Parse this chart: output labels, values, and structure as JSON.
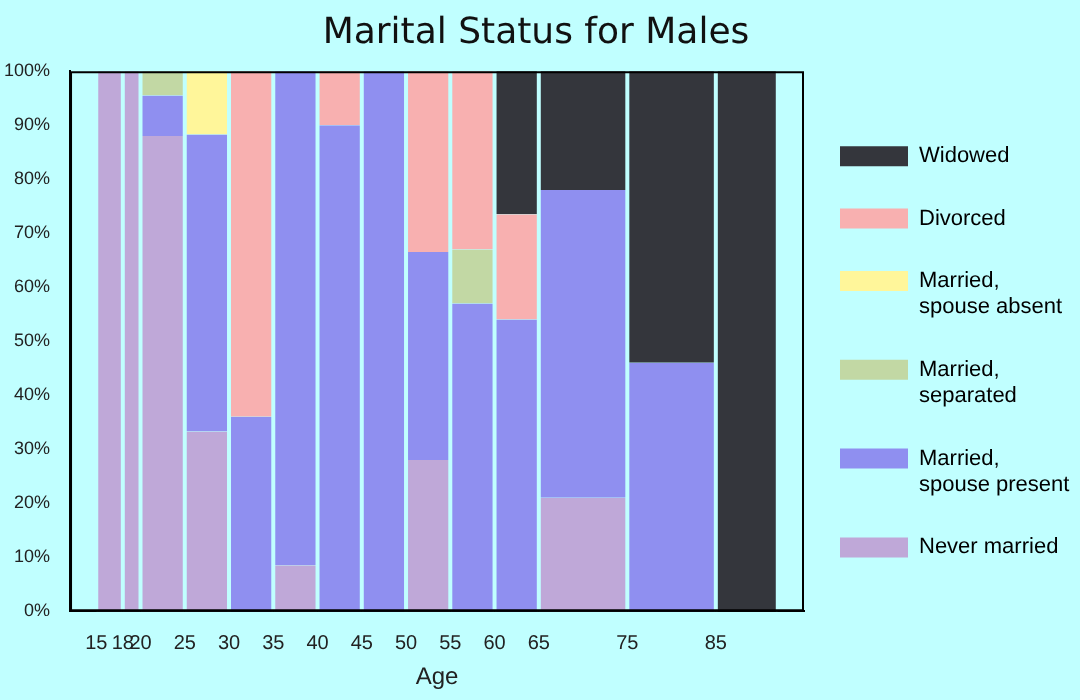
{
  "chart_data": {
    "type": "bar",
    "title": "Marital Status for Males",
    "xlabel": "Age",
    "stacked": true,
    "x": [
      16.5,
      19,
      22.5,
      27.5,
      32.5,
      37.5,
      42.5,
      47.5,
      52.5,
      57.5,
      62.5,
      70,
      80,
      88.5
    ],
    "xlim": [
      15,
      92
    ],
    "xticks": [
      15,
      18,
      20,
      25,
      30,
      35,
      40,
      45,
      50,
      55,
      60,
      65,
      75,
      85
    ],
    "ylim": [
      0,
      100
    ],
    "yticks": [
      {
        "value": 0,
        "label": "0%"
      },
      {
        "value": 10,
        "label": "10%"
      },
      {
        "value": 20,
        "label": "20%"
      },
      {
        "value": 30,
        "label": "30%"
      },
      {
        "value": 40,
        "label": "40%"
      },
      {
        "value": 50,
        "label": "50%"
      },
      {
        "value": 60,
        "label": "60%"
      },
      {
        "value": 70,
        "label": "70%"
      },
      {
        "value": 80,
        "label": "80%"
      },
      {
        "value": 90,
        "label": "90%"
      },
      {
        "value": 100,
        "label": "100%"
      }
    ],
    "legend": "right",
    "grid": false,
    "series": [
      {
        "name": "Never married",
        "color": "#bfa8d8",
        "values": [
          100,
          100,
          88,
          33.3,
          0,
          8.5,
          0,
          0,
          28,
          0,
          0,
          21,
          0,
          0
        ]
      },
      {
        "name": "Married, spouse present",
        "color": "#8f8ff0",
        "values": [
          0,
          0,
          7.5,
          55,
          36,
          91.5,
          90,
          100,
          38.5,
          57,
          54,
          57,
          46,
          0
        ]
      },
      {
        "name": "Married, separated",
        "color": "#c2d8a4",
        "values": [
          0,
          0,
          4.5,
          0,
          0,
          0,
          0,
          0,
          0,
          10,
          0,
          0,
          0,
          0
        ]
      },
      {
        "name": "Married, spouse absent",
        "color": "#fff69a",
        "values": [
          0,
          0,
          0,
          11.7,
          0,
          0,
          0,
          0,
          0,
          0,
          0,
          0,
          0,
          0
        ]
      },
      {
        "name": "Divorced",
        "color": "#f8b0b0",
        "values": [
          0,
          0,
          0,
          0,
          64,
          0,
          10,
          0,
          33.5,
          33,
          19.5,
          0,
          0,
          0
        ]
      },
      {
        "name": "Widowed",
        "color": "#34363c",
        "values": [
          0,
          0,
          0,
          0,
          0,
          0,
          0,
          0,
          0,
          0,
          26.5,
          22,
          54,
          100
        ]
      }
    ]
  }
}
